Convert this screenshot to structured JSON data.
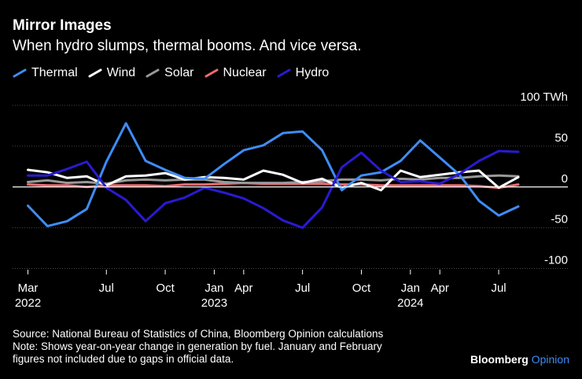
{
  "header": {
    "title": "Mirror Images",
    "subtitle": "When hydro slumps, thermal booms. And vice versa."
  },
  "footer": {
    "source": "Source: National Bureau of Statistics of China, Bloomberg Opinion calculations",
    "note_line1": "Note: Shows year-on-year change in generation by fuel. January and February",
    "note_line2": "figures not included due to gaps in official data."
  },
  "brand": {
    "name": "Bloomberg",
    "suffix": "Opinion"
  },
  "chart_data": {
    "type": "line",
    "title": "Mirror Images",
    "subtitle": "When hydro slumps, thermal booms. And vice versa.",
    "xlabel": "",
    "ylabel": "TWh",
    "ylim": [
      -100,
      100
    ],
    "yticks": [
      100,
      50,
      0,
      -50,
      -100
    ],
    "ytick_labels": [
      "100 TWh",
      "50",
      "0",
      "-50",
      "-100"
    ],
    "grid": "horizontal",
    "legend_position": "top-left",
    "x": [
      "2022-03",
      "2022-04",
      "2022-05",
      "2022-06",
      "2022-07",
      "2022-08",
      "2022-09",
      "2022-10",
      "2022-11",
      "2022-12",
      "2023-03",
      "2023-04",
      "2023-05",
      "2023-06",
      "2023-07",
      "2023-08",
      "2023-09",
      "2023-10",
      "2023-11",
      "2023-12",
      "2024-03",
      "2024-04",
      "2024-05",
      "2024-06",
      "2024-07",
      "2024-08"
    ],
    "x_tick_labels": [
      {
        "label": "Mar",
        "year": "2022",
        "index": 0
      },
      {
        "label": "Jul",
        "year": "",
        "index": 4
      },
      {
        "label": "Oct",
        "year": "",
        "index": 7
      },
      {
        "label": "Jan",
        "year": "2023",
        "index": 9.5
      },
      {
        "label": "Apr",
        "year": "",
        "index": 11
      },
      {
        "label": "Jul",
        "year": "",
        "index": 14
      },
      {
        "label": "Oct",
        "year": "",
        "index": 17
      },
      {
        "label": "Jan",
        "year": "2024",
        "index": 19.5
      },
      {
        "label": "Apr",
        "year": "",
        "index": 21
      },
      {
        "label": "Jul",
        "year": "",
        "index": 24
      }
    ],
    "series": [
      {
        "name": "Thermal",
        "color": "#3f8cf7",
        "values": [
          -23,
          -48,
          -42,
          -27,
          31,
          78,
          32,
          21,
          11,
          10,
          28,
          45,
          51,
          66,
          68,
          45,
          -4,
          14,
          18,
          32,
          57,
          36,
          15,
          -17,
          -35,
          -24
        ]
      },
      {
        "name": "Wind",
        "color": "#ffffff",
        "values": [
          21,
          18,
          11,
          13,
          2,
          13,
          14,
          17,
          9,
          12,
          11,
          9,
          20,
          15,
          5,
          10,
          -1,
          5,
          -4,
          20,
          12,
          15,
          18,
          20,
          -1,
          12
        ]
      },
      {
        "name": "Solar",
        "color": "#999999",
        "values": [
          6,
          8,
          5,
          6,
          4,
          8,
          9,
          8,
          9,
          9,
          6,
          5,
          5,
          5,
          6,
          7,
          9,
          9,
          8,
          10,
          9,
          11,
          11,
          13,
          14,
          13
        ]
      },
      {
        "name": "Nuclear",
        "color": "#f46a6f",
        "values": [
          3,
          2,
          2,
          0,
          2,
          2,
          2,
          1,
          3,
          3,
          4,
          5,
          4,
          4,
          4,
          4,
          3,
          3,
          2,
          2,
          2,
          2,
          2,
          1,
          -1,
          3
        ]
      },
      {
        "name": "Hydro",
        "color": "#2a1ad1",
        "values": [
          14,
          14,
          22,
          31,
          -1,
          -16,
          -42,
          -20,
          -13,
          -1,
          -7,
          -14,
          -26,
          -41,
          -50,
          -25,
          24,
          42,
          20,
          6,
          7,
          4,
          16,
          32,
          44,
          43
        ]
      }
    ]
  }
}
